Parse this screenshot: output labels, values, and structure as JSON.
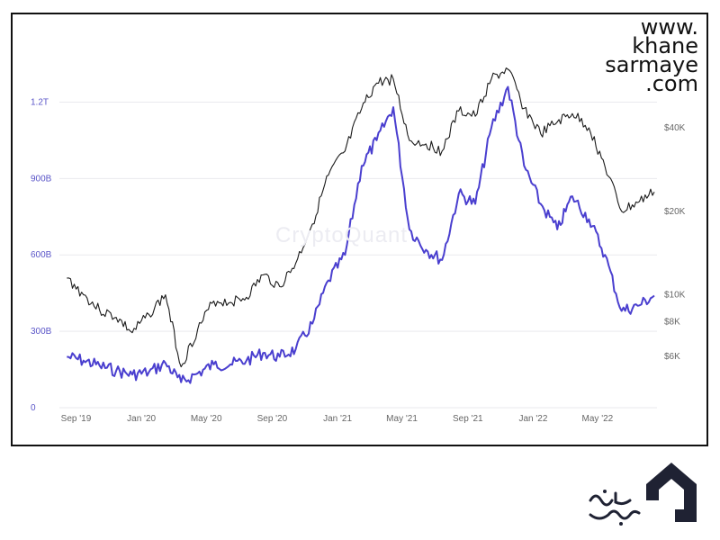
{
  "watermark": "CryptoQuant",
  "site": {
    "line1": "www.",
    "line2": "khane",
    "line3": "sarmaye",
    "line4": ".com"
  },
  "logo": {
    "icon": "khane-sarmaye-logo",
    "text": "خانه سرمایه"
  },
  "colors": {
    "cap": "#4a3fcf",
    "price": "#1a1a1a",
    "grid": "#e9e9ee"
  },
  "chart_data": {
    "type": "line",
    "title": "",
    "xlabel": "",
    "ylabel": "",
    "x_ticks": [
      "Sep '19",
      "Jan '20",
      "May '20",
      "Sep '20",
      "Jan '21",
      "May '21",
      "Sep '21",
      "Jan '22",
      "May '22"
    ],
    "y_left_ticks": [
      "0",
      "300B",
      "600B",
      "900B",
      "1.2T"
    ],
    "y_left_range": [
      0,
      1350
    ],
    "y_right_ticks": [
      "$6K",
      "$8K",
      "$10K",
      "$20K",
      "$40K"
    ],
    "y_right_scale": "log",
    "grid": true,
    "series": [
      {
        "axis": "left",
        "color": "#4a3fcf",
        "x": [
          "2019-08",
          "2019-09",
          "2019-10",
          "2019-11",
          "2019-12",
          "2020-01",
          "2020-02",
          "2020-03",
          "2020-04",
          "2020-05",
          "2020-06",
          "2020-07",
          "2020-08",
          "2020-09",
          "2020-10",
          "2020-11",
          "2020-12",
          "2021-01",
          "2021-02",
          "2021-03",
          "2021-04",
          "2021-05",
          "2021-06",
          "2021-07",
          "2021-08",
          "2021-09",
          "2021-10",
          "2021-11",
          "2021-12",
          "2022-01",
          "2022-02",
          "2022-03",
          "2022-04",
          "2022-05",
          "2022-06",
          "2022-07",
          "2022-08"
        ],
        "values": [
          200,
          185,
          165,
          145,
          130,
          140,
          175,
          100,
          135,
          170,
          170,
          185,
          215,
          200,
          230,
          330,
          500,
          600,
          950,
          1050,
          1180,
          700,
          620,
          580,
          840,
          800,
          1100,
          1260,
          950,
          800,
          700,
          830,
          740,
          600,
          380,
          400,
          440
        ]
      },
      {
        "axis": "right",
        "color": "#1a1a1a",
        "x": [
          "2019-08",
          "2019-09",
          "2019-10",
          "2019-11",
          "2019-12",
          "2020-01",
          "2020-02",
          "2020-03",
          "2020-04",
          "2020-05",
          "2020-06",
          "2020-07",
          "2020-08",
          "2020-09",
          "2020-10",
          "2020-11",
          "2020-12",
          "2021-01",
          "2021-02",
          "2021-03",
          "2021-04",
          "2021-05",
          "2021-06",
          "2021-07",
          "2021-08",
          "2021-09",
          "2021-10",
          "2021-11",
          "2021-12",
          "2022-01",
          "2022-02",
          "2022-03",
          "2022-04",
          "2022-05",
          "2022-06",
          "2022-07",
          "2022-08"
        ],
        "values": [
          11500,
          10000,
          8800,
          8300,
          7300,
          8500,
          10000,
          5500,
          7500,
          9500,
          9400,
          9800,
          11800,
          10700,
          13000,
          18000,
          27000,
          33000,
          47000,
          58000,
          60000,
          36000,
          35000,
          33000,
          46000,
          44000,
          60000,
          65000,
          47000,
          38000,
          42000,
          45000,
          40000,
          29000,
          20000,
          21500,
          23500
        ]
      }
    ]
  }
}
